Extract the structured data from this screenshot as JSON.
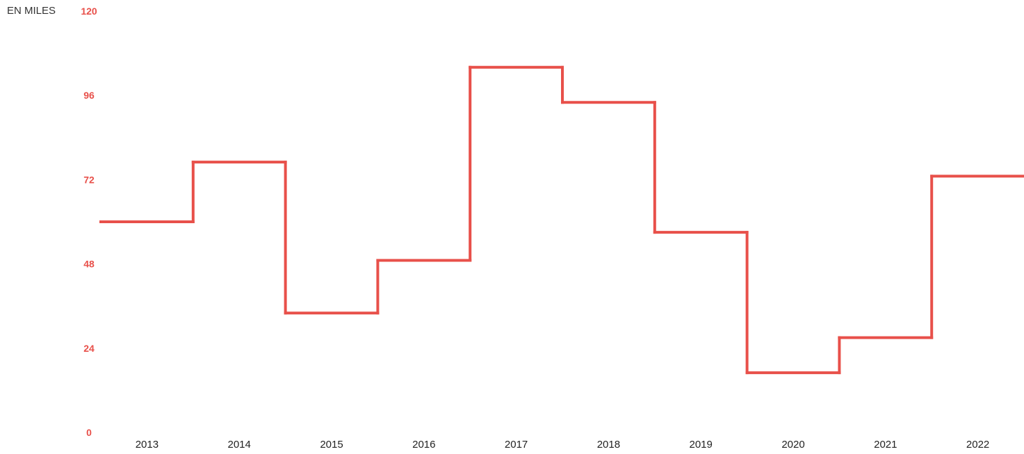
{
  "chart_data": {
    "type": "line",
    "step": true,
    "unit_label": "EN MILES",
    "categories": [
      "2013",
      "2014",
      "2015",
      "2016",
      "2017",
      "2018",
      "2019",
      "2020",
      "2021",
      "2022"
    ],
    "series": [
      {
        "values": [
          60,
          77,
          34,
          49,
          104,
          94,
          57,
          17,
          27,
          73
        ]
      }
    ],
    "ylim": [
      0,
      120
    ],
    "yticks": [
      "0",
      "24",
      "48",
      "72",
      "96",
      "120"
    ],
    "grid": false,
    "colors": {
      "line": "#e8504a",
      "ytick": "#e8504a",
      "xtick": "#222222",
      "unit_label": "#333333"
    }
  }
}
